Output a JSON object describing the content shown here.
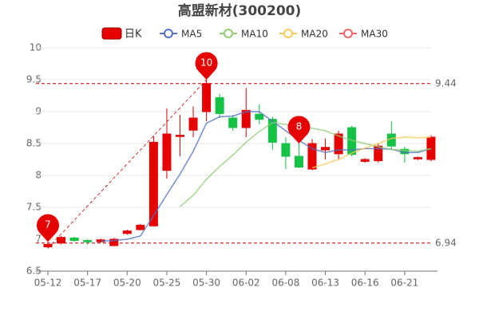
{
  "chart_data": {
    "type": "candlestick",
    "title": "高盟新材(300200)",
    "categories": [
      "05-12",
      null,
      null,
      "05-17",
      null,
      null,
      "05-20",
      null,
      null,
      "05-25",
      null,
      null,
      "05-30",
      null,
      null,
      "06-02",
      null,
      null,
      "06-08",
      null,
      null,
      "06-13",
      null,
      null,
      "06-16",
      null,
      null,
      "06-21",
      null,
      null
    ],
    "series": [
      {
        "name": "日K",
        "color": "#e60000",
        "down_color": "#14c246",
        "values": [
          [
            6.88,
            6.92,
            6.86,
            6.96
          ],
          [
            6.94,
            7.03,
            6.92,
            7.05
          ],
          [
            7.02,
            6.98,
            6.96,
            7.04
          ],
          [
            6.98,
            6.96,
            6.92,
            7.0
          ],
          [
            6.96,
            6.99,
            6.95,
            7.01
          ],
          [
            6.9,
            7.0,
            6.89,
            7.02
          ],
          [
            7.09,
            7.13,
            7.07,
            7.15
          ],
          [
            7.15,
            7.22,
            7.14,
            7.24
          ],
          [
            7.21,
            8.52,
            7.2,
            8.62
          ],
          [
            8.08,
            8.65,
            7.95,
            9.05
          ],
          [
            8.61,
            8.63,
            8.3,
            8.95
          ],
          [
            8.71,
            8.9,
            8.6,
            9.08
          ],
          [
            9.0,
            9.44,
            8.85,
            9.5
          ],
          [
            9.22,
            8.97,
            8.9,
            9.28
          ],
          [
            8.9,
            8.75,
            8.7,
            8.95
          ],
          [
            8.75,
            9.02,
            8.6,
            9.37
          ],
          [
            8.96,
            8.88,
            8.8,
            9.12
          ],
          [
            8.88,
            8.52,
            8.4,
            8.92
          ],
          [
            8.5,
            8.3,
            8.1,
            8.6
          ],
          [
            8.3,
            8.13,
            8.12,
            8.5
          ],
          [
            8.1,
            8.5,
            8.08,
            8.57
          ],
          [
            8.4,
            8.44,
            8.25,
            8.58
          ],
          [
            8.34,
            8.65,
            8.25,
            8.7
          ],
          [
            8.75,
            8.33,
            8.3,
            8.78
          ],
          [
            8.22,
            8.25,
            8.2,
            8.27
          ],
          [
            8.23,
            8.46,
            8.2,
            8.5
          ],
          [
            8.65,
            8.46,
            8.4,
            8.85
          ],
          [
            8.41,
            8.34,
            8.2,
            8.45
          ],
          [
            8.26,
            8.28,
            8.24,
            8.3
          ],
          [
            8.25,
            8.6,
            8.22,
            8.63
          ]
        ]
      },
      {
        "name": "MA5",
        "color": "#5470c6",
        "values": [
          null,
          null,
          null,
          null,
          6.97,
          6.98,
          7.0,
          7.05,
          7.37,
          7.7,
          8.02,
          8.38,
          8.82,
          8.92,
          8.93,
          9.0,
          9.0,
          8.85,
          8.7,
          8.55,
          8.42,
          8.36,
          8.4,
          8.4,
          8.42,
          8.42,
          8.41,
          8.36,
          8.36,
          8.42
        ]
      },
      {
        "name": "MA10",
        "color": "#91cc75",
        "values": [
          null,
          null,
          null,
          null,
          null,
          null,
          null,
          null,
          null,
          null,
          7.51,
          7.69,
          7.94,
          8.14,
          8.32,
          8.52,
          8.69,
          8.83,
          8.8,
          8.76,
          8.74,
          8.7,
          8.62,
          8.55,
          8.5,
          8.45,
          8.41,
          8.39,
          8.38,
          8.42
        ]
      },
      {
        "name": "MA20",
        "color": "#fac858",
        "values": [
          null,
          null,
          null,
          null,
          null,
          null,
          null,
          null,
          null,
          null,
          null,
          null,
          null,
          null,
          null,
          null,
          null,
          null,
          null,
          null,
          8.12,
          8.18,
          8.25,
          8.35,
          8.43,
          8.5,
          8.58,
          8.6,
          8.59,
          8.6
        ]
      },
      {
        "name": "MA30",
        "color": "#ee6666",
        "values": [
          null,
          null,
          null,
          null,
          null,
          null,
          null,
          null,
          null,
          null,
          null,
          null,
          null,
          null,
          null,
          null,
          null,
          null,
          null,
          null,
          null,
          null,
          null,
          null,
          null,
          null,
          null,
          null,
          null,
          null
        ]
      }
    ],
    "markers": [
      {
        "index": 12,
        "label": "10"
      },
      {
        "index": 0,
        "label": "7"
      },
      {
        "index": 19,
        "label": "8"
      }
    ],
    "ref_lines": [
      9.44,
      6.94
    ],
    "ylim": [
      6.5,
      10
    ],
    "yticks": [
      6.5,
      7,
      7.5,
      8,
      8.5,
      9,
      9.5,
      10
    ],
    "grid": true
  }
}
